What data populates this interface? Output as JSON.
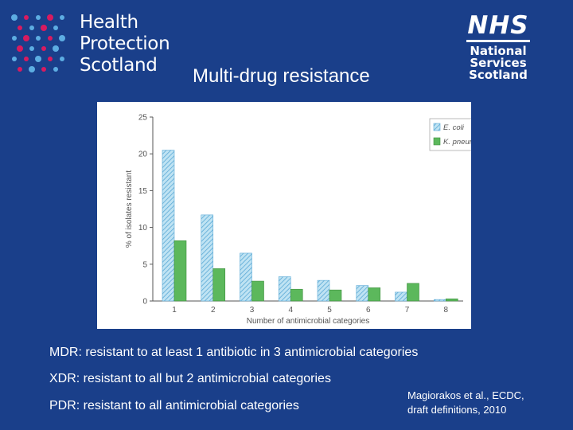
{
  "header": {
    "org_left": [
      "Health",
      "Protection",
      "Scotland"
    ],
    "org_right_logo": "NHS",
    "org_right_name": [
      "National",
      "Services",
      "Scotland"
    ],
    "title": "Multi-drug resistance"
  },
  "colors": {
    "background": "#1a3f8a",
    "ecoli_fill": "#bfe3f3",
    "ecoli_hatch": "#5aa9d6",
    "kpneum_fill": "#5cb85c",
    "dot_red": "#d81b60",
    "dot_blue": "#5dade2"
  },
  "chart_data": {
    "type": "bar",
    "categories": [
      "1",
      "2",
      "3",
      "4",
      "5",
      "6",
      "7",
      "8"
    ],
    "series": [
      {
        "name": "E. coli",
        "values": [
          20.5,
          11.7,
          6.5,
          3.3,
          2.8,
          2.1,
          1.2,
          0.2
        ]
      },
      {
        "name": "K. pneum",
        "values": [
          8.2,
          4.4,
          2.7,
          1.6,
          1.5,
          1.8,
          2.4,
          0.3
        ]
      }
    ],
    "xlabel": "Number of antimicrobial categories",
    "ylabel": "% of isolates resistant",
    "ylim": [
      0,
      25
    ],
    "yticks": [
      "0",
      "5",
      "10",
      "15",
      "20",
      "25"
    ],
    "grid": false,
    "legend_position": "top-right"
  },
  "notes": [
    "MDR: resistant to at least 1 antibiotic in 3 antimicrobial categories",
    "XDR: resistant to all but 2 antimicrobial categories",
    "PDR: resistant to all antimicrobial categories"
  ],
  "citation": [
    "Magiorakos et al., ECDC,",
    "draft definitions, 2010"
  ]
}
